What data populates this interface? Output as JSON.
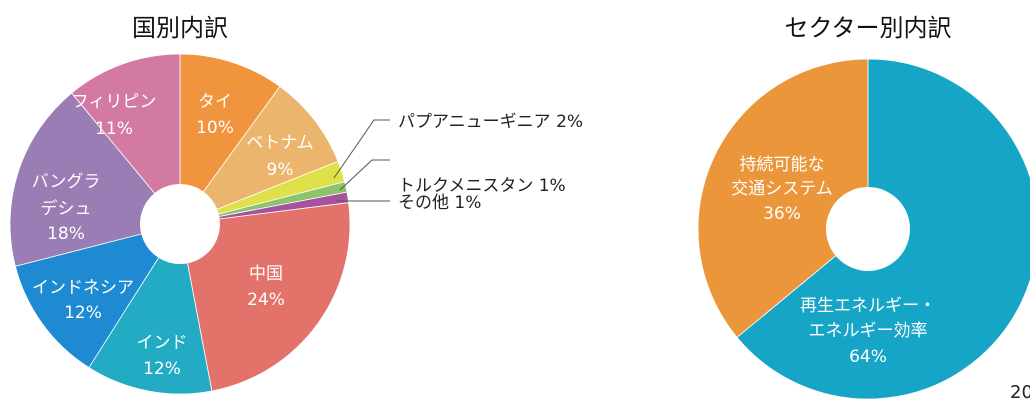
{
  "page_number": "20",
  "chart_data": [
    {
      "type": "pie",
      "title": "国別内訳",
      "slices": [
        {
          "label": "タイ",
          "value": 10,
          "value_text": "10%",
          "color": "#f0953d"
        },
        {
          "label": "ベトナム",
          "value": 9,
          "value_text": "9%",
          "color": "#ecb56e"
        },
        {
          "label": "パプアニューギニア",
          "value": 2,
          "value_text": "2%",
          "color": "#dfe04a"
        },
        {
          "label": "トルクメニスタン",
          "value": 1,
          "value_text": "1%",
          "color": "#8cc36b"
        },
        {
          "label": "その他",
          "value": 1,
          "value_text": "1%",
          "color": "#a6529e"
        },
        {
          "label": "中国",
          "value": 24,
          "value_text": "24%",
          "color": "#e3726a"
        },
        {
          "label": "インド",
          "value": 12,
          "value_text": "12%",
          "color": "#23abc4"
        },
        {
          "label": "インドネシア",
          "value": 12,
          "value_text": "12%",
          "color": "#1e8ad1"
        },
        {
          "label": "バングラデシュ",
          "value": 18,
          "value_text": "18%",
          "color": "#9a7db5"
        },
        {
          "label": "フィリピン",
          "value": 11,
          "value_text": "11%",
          "color": "#d27aa2"
        }
      ]
    },
    {
      "type": "pie",
      "title": "セクター別内訳",
      "slices": [
        {
          "label": "再生エネルギー・エネルギー効率",
          "value": 64,
          "value_text": "64%",
          "color": "#16a5c6"
        },
        {
          "label": "持続可能な交通システム",
          "value": 36,
          "value_text": "36%",
          "color": "#ec963c"
        }
      ]
    }
  ]
}
